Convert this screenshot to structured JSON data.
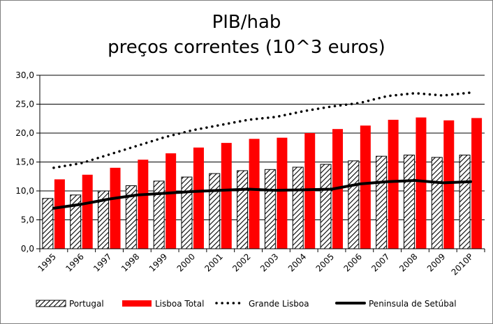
{
  "chart_data": {
    "type": "bar",
    "title_line1": "PIB/hab",
    "title_line2": "preços correntes (10^3 euros)",
    "categories": [
      "1995",
      "1996",
      "1997",
      "1998",
      "1999",
      "2000",
      "2001",
      "2002",
      "2003",
      "2004",
      "2005",
      "2006",
      "2007",
      "2008",
      "2009",
      "2010P"
    ],
    "ylim": [
      0,
      30
    ],
    "yticks": [
      "0,0",
      "5,0",
      "10,0",
      "15,0",
      "20,0",
      "25,0",
      "30,0"
    ],
    "grid": true,
    "legend_position": "bottom",
    "series": [
      {
        "name": "Portugal",
        "kind": "bar",
        "pattern": "hatched",
        "color": "#000000",
        "values": [
          8.7,
          9.3,
          10.0,
          10.9,
          11.7,
          12.4,
          13.0,
          13.5,
          13.7,
          14.1,
          14.6,
          15.2,
          16.0,
          16.2,
          15.8,
          16.2
        ]
      },
      {
        "name": "Lisboa Total",
        "kind": "bar",
        "color": "#ff0000",
        "values": [
          12.0,
          12.8,
          14.0,
          15.4,
          16.5,
          17.5,
          18.3,
          19.0,
          19.2,
          20.0,
          20.7,
          21.3,
          22.3,
          22.7,
          22.2,
          22.6
        ]
      },
      {
        "name": "Grande Lisboa",
        "kind": "line",
        "style": "dotted",
        "color": "#000000",
        "values": [
          14.0,
          14.8,
          16.3,
          17.8,
          19.3,
          20.5,
          21.4,
          22.3,
          22.8,
          23.8,
          24.6,
          25.2,
          26.4,
          26.9,
          26.5,
          27.0
        ]
      },
      {
        "name": "Peninsula de Setúbal",
        "kind": "line",
        "style": "solid",
        "color": "#000000",
        "values": [
          7.0,
          7.7,
          8.6,
          9.3,
          9.6,
          9.9,
          10.1,
          10.3,
          10.1,
          10.2,
          10.3,
          11.2,
          11.6,
          11.8,
          11.4,
          11.6
        ]
      }
    ]
  }
}
